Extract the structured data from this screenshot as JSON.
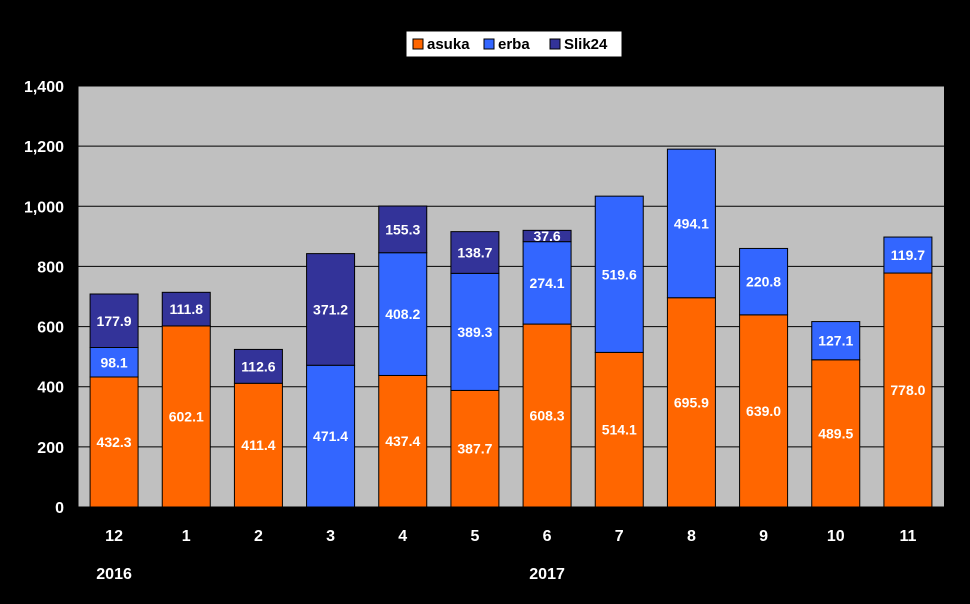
{
  "chart_data": {
    "type": "bar",
    "stacked": true,
    "categories": [
      "12",
      "1",
      "2",
      "3",
      "4",
      "5",
      "6",
      "7",
      "8",
      "9",
      "10",
      "11"
    ],
    "year_labels": [
      {
        "text": "2016",
        "category_index": 0
      },
      {
        "text": "2017",
        "category_index": 6
      }
    ],
    "series": [
      {
        "name": "asuka",
        "color": "#ff6600",
        "values": [
          432.3,
          602.1,
          411.4,
          0,
          437.4,
          387.7,
          608.3,
          514.1,
          695.9,
          639.0,
          489.5,
          778.0
        ],
        "labels": [
          "432.3",
          "602.1",
          "411.4",
          null,
          "437.4",
          "387.7",
          "608.3",
          "514.1",
          "695.9",
          "639.0",
          "489.5",
          "778.0"
        ]
      },
      {
        "name": "erba",
        "color": "#3366ff",
        "values": [
          98.1,
          0,
          0,
          471.4,
          408.2,
          389.3,
          274.1,
          519.6,
          494.1,
          220.8,
          127.1,
          119.7
        ],
        "labels": [
          "98.1",
          null,
          null,
          "471.4",
          "408.2",
          "389.3",
          "274.1",
          "519.6",
          "494.1",
          "220.8",
          "127.1",
          "119.7"
        ]
      },
      {
        "name": "Slik24",
        "color": "#333399",
        "values": [
          177.9,
          111.8,
          112.6,
          371.2,
          155.3,
          138.7,
          37.6,
          0,
          0,
          0,
          0,
          0
        ],
        "labels": [
          "177.9",
          "111.8",
          "112.6",
          "371.2",
          "155.3",
          "138.7",
          "37.6",
          null,
          null,
          null,
          null,
          null
        ]
      }
    ],
    "ylim": [
      0,
      1400
    ],
    "yticks": [
      0,
      200,
      400,
      600,
      800,
      1000,
      1200,
      1400
    ],
    "ytick_labels": [
      "0",
      "200",
      "400",
      "600",
      "800",
      "1,000",
      "1,200",
      "1,400"
    ],
    "legend_position": "top-center",
    "grid": true,
    "plot_background": "#c0c0c0"
  }
}
